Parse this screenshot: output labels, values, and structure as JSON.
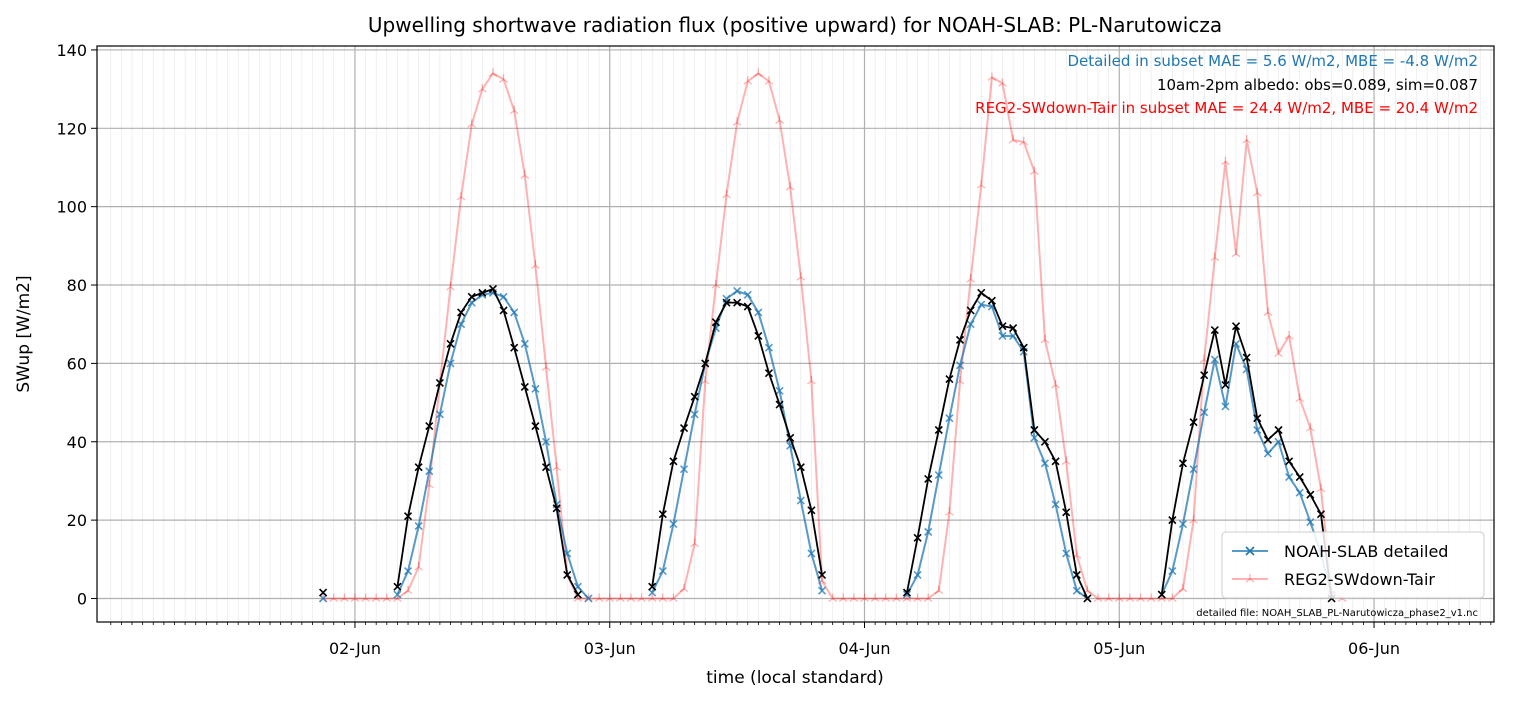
{
  "chart_data": {
    "type": "line",
    "title": "Upwelling shortwave radiation flux (positive upward) for NOAH-SLAB: PL-Narutowicza",
    "xlabel": "time (local standard)",
    "ylabel": "SWup [W/m2]",
    "ylim": [
      -6,
      141
    ],
    "x_range_hours": [
      -24.3,
      107.3
    ],
    "x_ticks": [
      {
        "label": "02-Jun",
        "hour": 0
      },
      {
        "label": "03-Jun",
        "hour": 24
      },
      {
        "label": "04-Jun",
        "hour": 48
      },
      {
        "label": "05-Jun",
        "hour": 72
      },
      {
        "label": "06-Jun",
        "hour": 96
      }
    ],
    "y_ticks": [
      0,
      20,
      40,
      60,
      80,
      100,
      120,
      140
    ],
    "grid": true,
    "annotations": [
      {
        "text": "Detailed in subset MAE = 5.6 W/m2, MBE = -4.8 W/m2",
        "color": "#1f77b4"
      },
      {
        "text": "10am-2pm albedo: obs=0.089, sim=0.087",
        "color": "#000000"
      },
      {
        "text": "REG2-SWdown-Tair in subset MAE = 24.4 W/m2, MBE = 20.4 W/m2",
        "color": "#ff0000"
      }
    ],
    "footnote": "detailed file: NOAH_SLAB_PL-Narutowicza_phase2_v1.nc",
    "legend_position": "lower-right",
    "series": [
      {
        "name": "NOAH-SLAB detailed",
        "color": "#1f77b4",
        "marker": "x",
        "segments": [
          {
            "start_hour": -3,
            "values": [
              0
            ]
          },
          {
            "start_hour": 4,
            "values": [
              1,
              7,
              18.5,
              32.5,
              47,
              60,
              70,
              75.5,
              77.5,
              78,
              77,
              73,
              65,
              53.5,
              40,
              24,
              11.5,
              3,
              0
            ]
          },
          {
            "start_hour": 28,
            "values": [
              1.5,
              7,
              19,
              33,
              47,
              60,
              69,
              76.5,
              78.5,
              77.5,
              73,
              64,
              53,
              39,
              25,
              11.5,
              2
            ]
          },
          {
            "start_hour": 52,
            "values": [
              1,
              6,
              17,
              31.5,
              46,
              59.5,
              70,
              75,
              74.5,
              67,
              67,
              63,
              41,
              34.5,
              24,
              11.5,
              2,
              0
            ]
          },
          {
            "start_hour": 76,
            "values": [
              1,
              7,
              19,
              33,
              47.5,
              61,
              49,
              65,
              58.5,
              43,
              37,
              40,
              31,
              27,
              19.5,
              11.5,
              1
            ]
          }
        ]
      },
      {
        "name": "REG2-SWdown-Tair",
        "color": "#ff0000",
        "opacity": 0.3,
        "marker": "tri",
        "segments": [
          {
            "start_hour": -3,
            "values": [
              0,
              0,
              0,
              0,
              0,
              0,
              0,
              0,
              2,
              8,
              29,
              55,
              79.5,
              102.5,
              121,
              130,
              134,
              132.5,
              124.5,
              108,
              85,
              59,
              33.5,
              6,
              0,
              0,
              0,
              0,
              0,
              0,
              0,
              0,
              0,
              0,
              2.5,
              14,
              55.5,
              80,
              103,
              121.5,
              132,
              134,
              132,
              122,
              105,
              82,
              55.5,
              4.5,
              0,
              0,
              0,
              0,
              0,
              0,
              0,
              0,
              0,
              0,
              2,
              22,
              55.5,
              81.5,
              105.5,
              133,
              131.5,
              117,
              116.5,
              109,
              66,
              54.5,
              35,
              11,
              2,
              0,
              0,
              0,
              0,
              0,
              0,
              0,
              0,
              2.5,
              20,
              61,
              87,
              111.5,
              88,
              117,
              103.5,
              73,
              62.5,
              67,
              51,
              43.5,
              28,
              2,
              0
            ]
          }
        ]
      },
      {
        "name": "",
        "color": "#000000",
        "marker": "x",
        "segments": [
          {
            "start_hour": -3,
            "values": [
              1.5
            ]
          },
          {
            "start_hour": 4,
            "values": [
              3,
              21,
              33.5,
              44,
              55,
              65,
              73,
              77,
              78,
              79,
              73.5,
              64,
              54,
              44,
              33.5,
              23,
              6,
              1
            ]
          },
          {
            "start_hour": 28,
            "values": [
              3,
              21.5,
              35,
              43.5,
              51.5,
              60,
              70.5,
              75.5,
              75.5,
              74.5,
              67,
              57.5,
              49.5,
              41,
              33.5,
              22.5,
              6
            ]
          },
          {
            "start_hour": 52,
            "values": [
              1.5,
              15.5,
              30.5,
              43,
              56,
              66,
              73.5,
              78,
              76,
              69.5,
              69,
              64,
              43,
              40,
              35,
              22,
              6,
              0
            ]
          },
          {
            "start_hour": 76,
            "values": [
              1,
              20,
              34.5,
              45,
              57,
              68.5,
              54.5,
              69.5,
              61.5,
              46,
              40.5,
              43,
              35,
              31,
              26.5,
              21.5,
              0
            ]
          }
        ]
      }
    ]
  }
}
